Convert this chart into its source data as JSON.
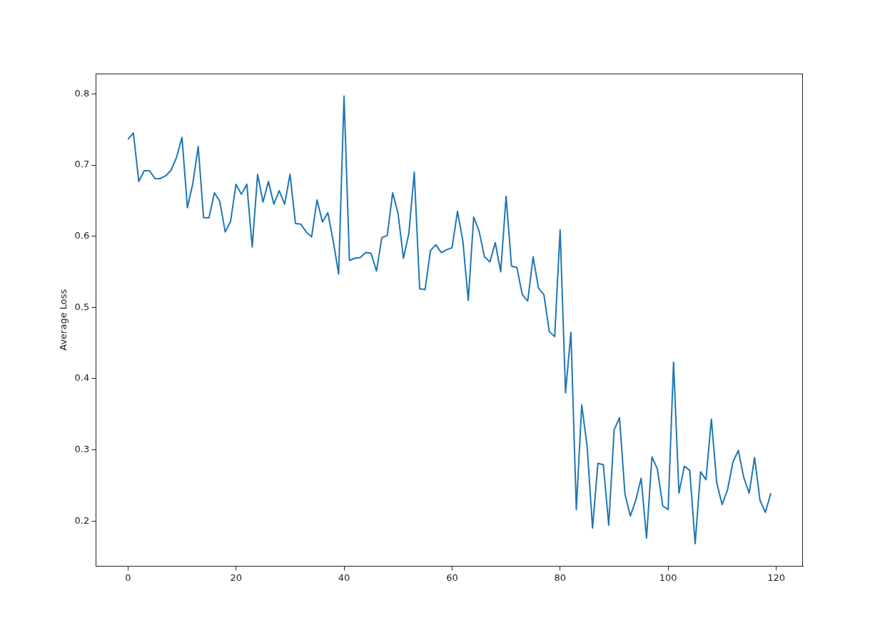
{
  "chart_data": {
    "type": "line",
    "ylabel": "Average Loss",
    "x": [
      0,
      1,
      2,
      3,
      4,
      5,
      6,
      7,
      8,
      9,
      10,
      11,
      12,
      13,
      14,
      15,
      16,
      17,
      18,
      19,
      20,
      21,
      22,
      23,
      24,
      25,
      26,
      27,
      28,
      29,
      30,
      31,
      32,
      33,
      34,
      35,
      36,
      37,
      38,
      39,
      40,
      41,
      42,
      43,
      44,
      45,
      46,
      47,
      48,
      49,
      50,
      51,
      52,
      53,
      54,
      55,
      56,
      57,
      58,
      59,
      60,
      61,
      62,
      63,
      64,
      65,
      66,
      67,
      68,
      69,
      70,
      71,
      72,
      73,
      74,
      75,
      76,
      77,
      78,
      79,
      80,
      81,
      82,
      83,
      84,
      85,
      86,
      87,
      88,
      89,
      90,
      91,
      92,
      93,
      94,
      95,
      96,
      97,
      98,
      99,
      100,
      101,
      102,
      103,
      104,
      105,
      106,
      107,
      108,
      109,
      110,
      111,
      112,
      113,
      114,
      115,
      116,
      117,
      118,
      119
    ],
    "series": [
      {
        "color": "#1f77b4",
        "values": [
          0.736,
          0.745,
          0.677,
          0.692,
          0.692,
          0.681,
          0.681,
          0.685,
          0.693,
          0.711,
          0.739,
          0.64,
          0.674,
          0.726,
          0.626,
          0.626,
          0.661,
          0.649,
          0.606,
          0.621,
          0.673,
          0.659,
          0.673,
          0.585,
          0.687,
          0.648,
          0.677,
          0.645,
          0.664,
          0.645,
          0.687,
          0.618,
          0.617,
          0.606,
          0.599,
          0.651,
          0.62,
          0.633,
          0.593,
          0.547,
          0.797,
          0.566,
          0.569,
          0.57,
          0.577,
          0.576,
          0.551,
          0.598,
          0.601,
          0.661,
          0.632,
          0.569,
          0.604,
          0.69,
          0.526,
          0.525,
          0.58,
          0.588,
          0.577,
          0.581,
          0.584,
          0.635,
          0.593,
          0.51,
          0.627,
          0.607,
          0.571,
          0.564,
          0.591,
          0.55,
          0.656,
          0.558,
          0.556,
          0.518,
          0.509,
          0.571,
          0.527,
          0.518,
          0.466,
          0.459,
          0.609,
          0.38,
          0.465,
          0.216,
          0.363,
          0.305,
          0.19,
          0.281,
          0.279,
          0.194,
          0.328,
          0.345,
          0.238,
          0.207,
          0.229,
          0.26,
          0.176,
          0.29,
          0.273,
          0.221,
          0.216,
          0.423,
          0.239,
          0.277,
          0.271,
          0.168,
          0.269,
          0.258,
          0.343,
          0.253,
          0.223,
          0.244,
          0.283,
          0.299,
          0.261,
          0.239,
          0.289,
          0.229,
          0.212,
          0.239
        ]
      }
    ],
    "xlim": [
      -5.95,
      124.95
    ],
    "ylim": [
      0.1365,
      0.8285
    ],
    "xticks": [
      0,
      20,
      40,
      60,
      80,
      100,
      120
    ],
    "yticks": [
      0.2,
      0.3,
      0.4,
      0.5,
      0.6,
      0.7,
      0.8
    ],
    "grid": false,
    "legend": false
  }
}
